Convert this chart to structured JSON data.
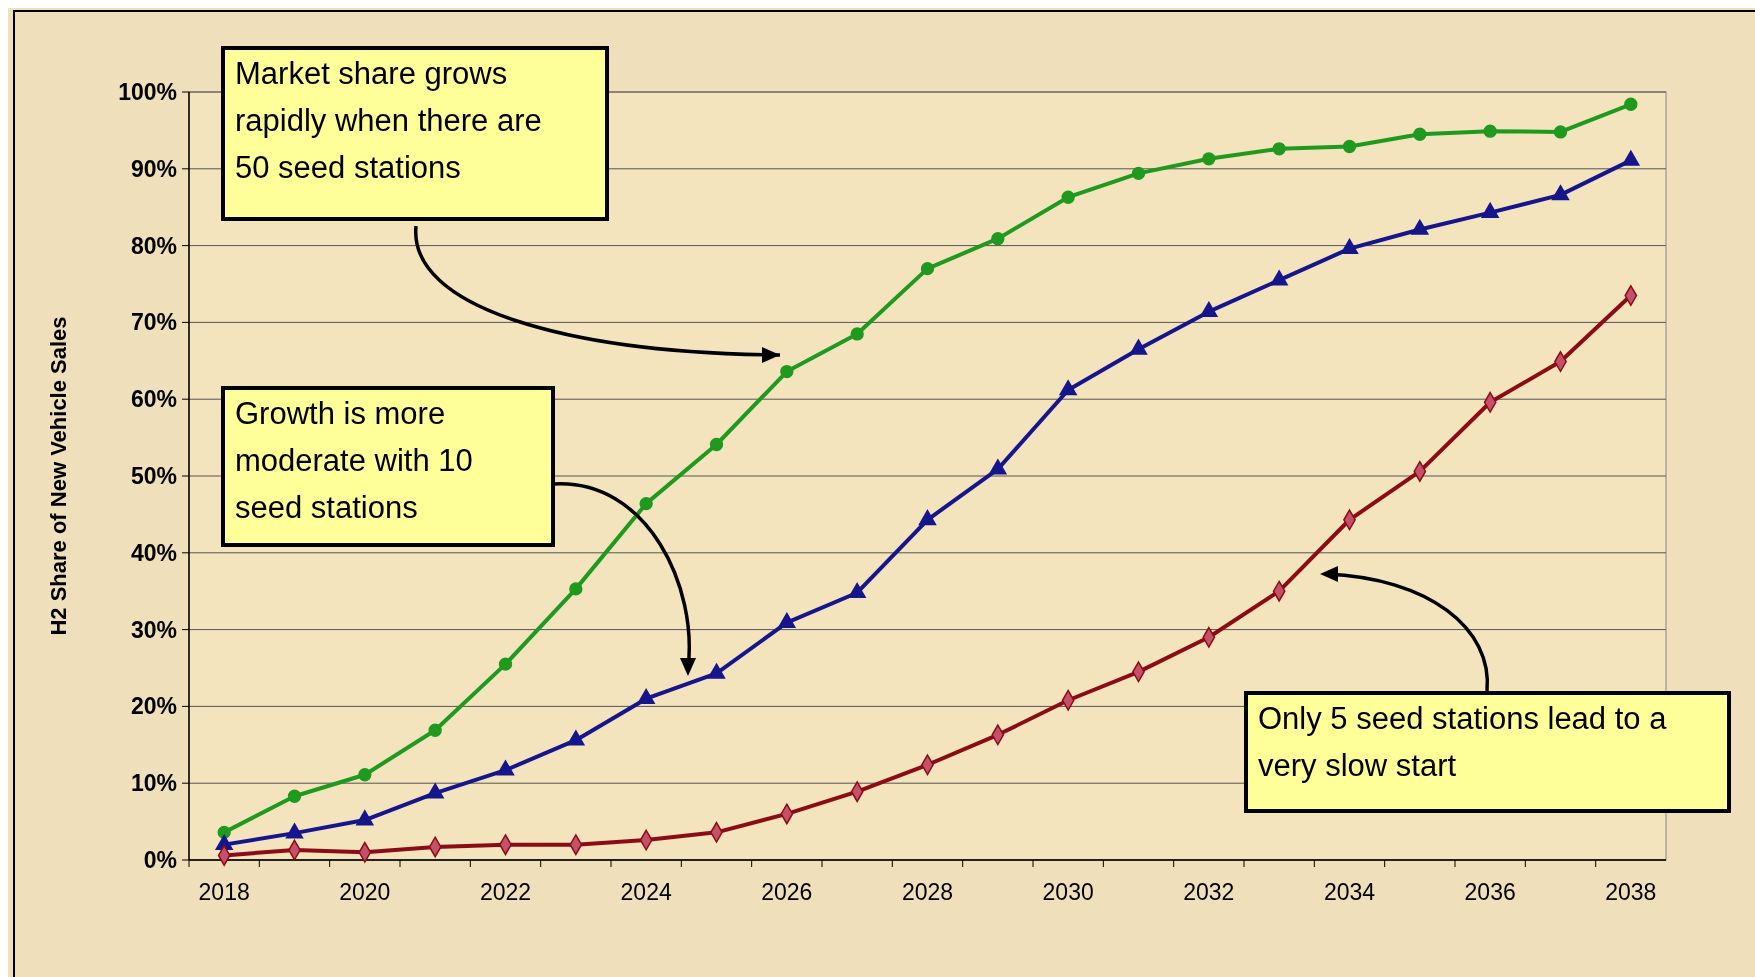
{
  "chart_data": {
    "type": "line",
    "ylabel": "H2 Share of New Vehicle Sales",
    "categories": [
      "2018",
      null,
      "2020",
      null,
      "2022",
      null,
      "2024",
      null,
      "2026",
      null,
      "2028",
      null,
      "2030",
      null,
      "2032",
      null,
      "2034",
      null,
      "2036",
      null,
      "2038"
    ],
    "series": [
      {
        "color": "#1f9a1f",
        "marker": "circle",
        "values": [
          3.6,
          8.3,
          11.1,
          16.9,
          25.5,
          35.3,
          46.4,
          54.1,
          63.6,
          68.5,
          77,
          80.9,
          86.3,
          89.4,
          91.3,
          92.6,
          92.9,
          94.5,
          94.9,
          94.8,
          98.4
        ]
      },
      {
        "color": "#16168c",
        "marker": "triangle",
        "values": [
          2,
          3.5,
          5.2,
          8.7,
          11.7,
          15.6,
          21,
          24.3,
          30.9,
          34.8,
          44.3,
          50.9,
          61.2,
          66.5,
          71.4,
          75.5,
          79.6,
          82.1,
          84.3,
          86.6,
          91.1
        ]
      },
      {
        "color": "#8c0c16",
        "marker": "diamond",
        "values": [
          0.6,
          1.3,
          1,
          1.7,
          2,
          2,
          2.6,
          3.6,
          6,
          8.9,
          12.4,
          16.3,
          20.8,
          24.5,
          29,
          35,
          44.3,
          50.6,
          59.6,
          64.9,
          73.5
        ]
      }
    ],
    "ylim": [
      0,
      100
    ],
    "yticks": [
      {
        "value": 0,
        "label": "0%"
      },
      {
        "value": 10,
        "label": "10%"
      },
      {
        "value": 20,
        "label": "20%"
      },
      {
        "value": 30,
        "label": "30%"
      },
      {
        "value": 40,
        "label": "40%"
      },
      {
        "value": 50,
        "label": "50%"
      },
      {
        "value": 60,
        "label": "60%"
      },
      {
        "value": 70,
        "label": "70%"
      },
      {
        "value": 80,
        "label": "80%"
      },
      {
        "value": 90,
        "label": "90%"
      },
      {
        "value": 100,
        "label": "100%"
      }
    ],
    "grid": "y",
    "annotations": [
      "Market share grows rapidly when there are 50 seed stations",
      "Growth is more moderate with 10 seed stations",
      "Only 5 seed stations lead to a very slow start"
    ]
  }
}
